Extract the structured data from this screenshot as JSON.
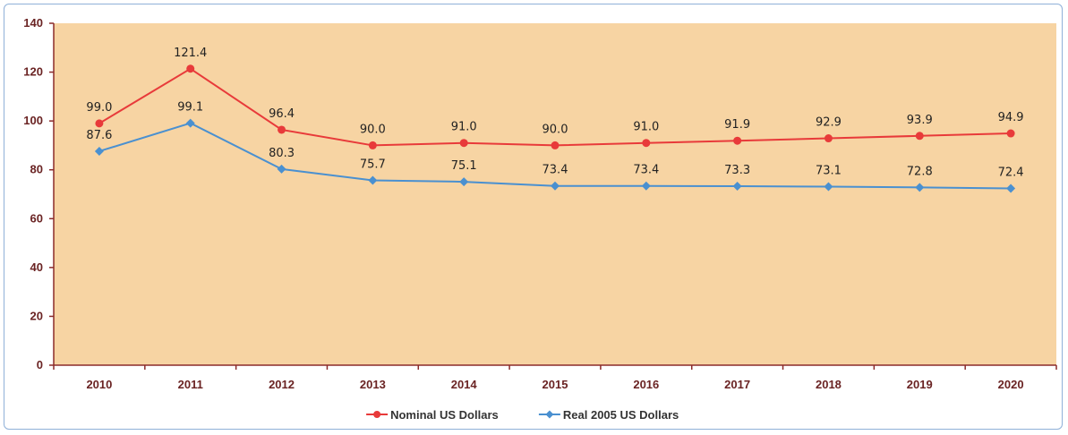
{
  "chart_data": {
    "type": "line",
    "title": "",
    "xlabel": "",
    "ylabel": "",
    "x": [
      "2010",
      "2011",
      "2012",
      "2013",
      "2014",
      "2015",
      "2016",
      "2017",
      "2018",
      "2019",
      "2020"
    ],
    "ylim": [
      0,
      140
    ],
    "yticks": [
      0,
      20,
      40,
      60,
      80,
      100,
      120,
      140
    ],
    "grid": false,
    "legend_position": "bottom",
    "plot_background": "#f7d4a3",
    "axis_color": "#8b2b2b",
    "series": [
      {
        "name": "Nominal US Dollars",
        "color": "#e83a3a",
        "marker": "circle",
        "values": [
          99.0,
          121.4,
          96.4,
          90.0,
          91.0,
          90.0,
          91.0,
          91.9,
          92.9,
          93.9,
          94.9
        ],
        "labels": [
          "99.0",
          "121.4",
          "96.4",
          "90.0",
          "91.0",
          "90.0",
          "91.0",
          "91.9",
          "92.9",
          "93.9",
          "94.9"
        ]
      },
      {
        "name": "Real 2005 US Dollars",
        "color": "#4a90d0",
        "marker": "diamond",
        "values": [
          87.6,
          99.1,
          80.3,
          75.7,
          75.1,
          73.4,
          73.4,
          73.3,
          73.1,
          72.8,
          72.4
        ],
        "labels": [
          "87.6",
          "99.1",
          "80.3",
          "75.7",
          "75.1",
          "73.4",
          "73.4",
          "73.3",
          "73.1",
          "72.8",
          "72.4"
        ]
      }
    ]
  }
}
